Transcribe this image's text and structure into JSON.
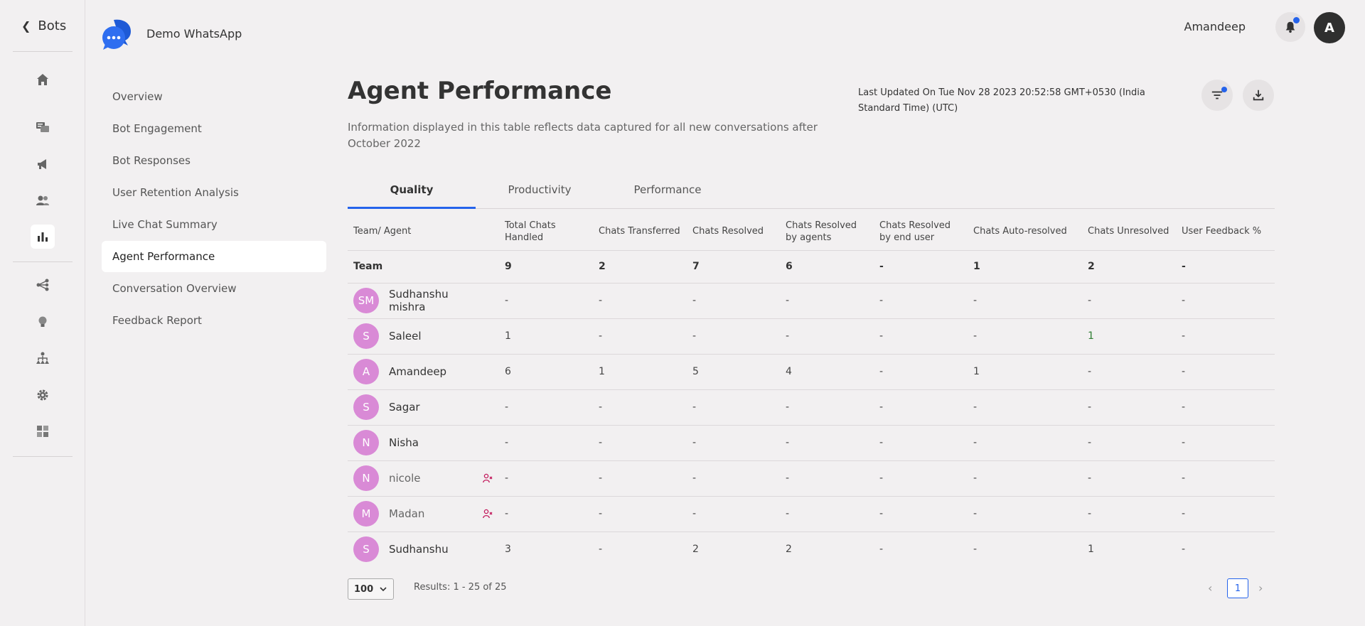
{
  "nav": {
    "back_label": "Bots"
  },
  "header": {
    "bot_name": "Demo WhatsApp",
    "user_name": "Amandeep",
    "avatar_initial": "A"
  },
  "rail_icons": [
    "home-icon",
    "chat-icon",
    "megaphone-icon",
    "users-icon",
    "analytics-icon",
    "flow-icon",
    "bulb-icon",
    "hierarchy-icon",
    "gear-icon",
    "puzzle-icon"
  ],
  "subnav": {
    "items": [
      {
        "label": "Overview"
      },
      {
        "label": "Bot Engagement"
      },
      {
        "label": "Bot Responses"
      },
      {
        "label": "User Retention Analysis"
      },
      {
        "label": "Live Chat Summary"
      },
      {
        "label": "Agent Performance"
      },
      {
        "label": "Conversation Overview"
      },
      {
        "label": "Feedback Report"
      }
    ],
    "active": "Agent Performance"
  },
  "page": {
    "title": "Agent Performance",
    "subtitle": "Information displayed in this table reflects data captured for all new conversations after October 2022",
    "last_updated": "Last Updated On Tue Nov 28 2023 20:52:58 GMT+0530 (India Standard Time) (UTC)"
  },
  "tabs": [
    {
      "label": "Quality"
    },
    {
      "label": "Productivity"
    },
    {
      "label": "Performance"
    }
  ],
  "table": {
    "headers": [
      "Team/ Agent",
      "Total Chats Handled",
      "Chats Transferred",
      "Chats Resolved",
      "Chats Resolved by agents",
      "Chats Resolved by end user",
      "Chats Auto-resolved",
      "Chats Unresolved",
      "User Feedback %"
    ],
    "team": [
      "Team",
      "9",
      "2",
      "7",
      "6",
      "-",
      "1",
      "2",
      "-"
    ],
    "rows": [
      {
        "initials": "SM",
        "name": "Sudhanshu mishra",
        "values": [
          "-",
          "-",
          "-",
          "-",
          "-",
          "-",
          "-",
          "-"
        ]
      },
      {
        "initials": "S",
        "name": "Saleel",
        "values": [
          "1",
          "-",
          "-",
          "-",
          "-",
          "-",
          "1",
          "-"
        ]
      },
      {
        "initials": "A",
        "name": "Amandeep",
        "values": [
          "6",
          "1",
          "5",
          "4",
          "-",
          "1",
          "-",
          "-"
        ]
      },
      {
        "initials": "S",
        "name": "Sagar",
        "values": [
          "-",
          "-",
          "-",
          "-",
          "-",
          "-",
          "-",
          "-"
        ]
      },
      {
        "initials": "N",
        "name": "Nisha",
        "values": [
          "-",
          "-",
          "-",
          "-",
          "-",
          "-",
          "-",
          "-"
        ]
      },
      {
        "initials": "N",
        "name": "nicole",
        "values": [
          "-",
          "-",
          "-",
          "-",
          "-",
          "-",
          "-",
          "-"
        ]
      },
      {
        "initials": "M",
        "name": "Madan",
        "values": [
          "-",
          "-",
          "-",
          "-",
          "-",
          "-",
          "-",
          "-"
        ]
      },
      {
        "initials": "S",
        "name": "Sudhanshu",
        "values": [
          "3",
          "-",
          "2",
          "2",
          "-",
          "-",
          "1",
          "-"
        ]
      }
    ]
  },
  "pagination": {
    "page_size": "100",
    "results": "Results: 1 - 25 of 25",
    "current_page": "1"
  },
  "colors": {
    "accent": "#2563eb",
    "avatar": "#d98ad6",
    "removed_icon": "#c2185b"
  }
}
